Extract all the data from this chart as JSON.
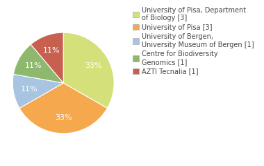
{
  "labels": [
    "University of Pisa, Department\nof Biology [3]",
    "University of Pisa [3]",
    "University of Bergen,\nUniversity Museum of Bergen [1]",
    "Centre for Biodiversity\nGenomics [1]",
    "AZTI Tecnalia [1]"
  ],
  "values": [
    3,
    3,
    1,
    1,
    1
  ],
  "colors": [
    "#d4e07a",
    "#f5a84e",
    "#a8c4e0",
    "#8db86e",
    "#c86050"
  ],
  "legend_labels": [
    "University of Pisa, Department\nof Biology [3]",
    "University of Pisa [3]",
    "University of Bergen,\nUniversity Museum of Bergen [1]",
    "Centre for Biodiversity\nGenomics [1]",
    "AZTI Tecnalia [1]"
  ],
  "text_color": "#444444",
  "pct_color": "white",
  "fontsize": 7.0,
  "pct_fontsize": 8.0
}
